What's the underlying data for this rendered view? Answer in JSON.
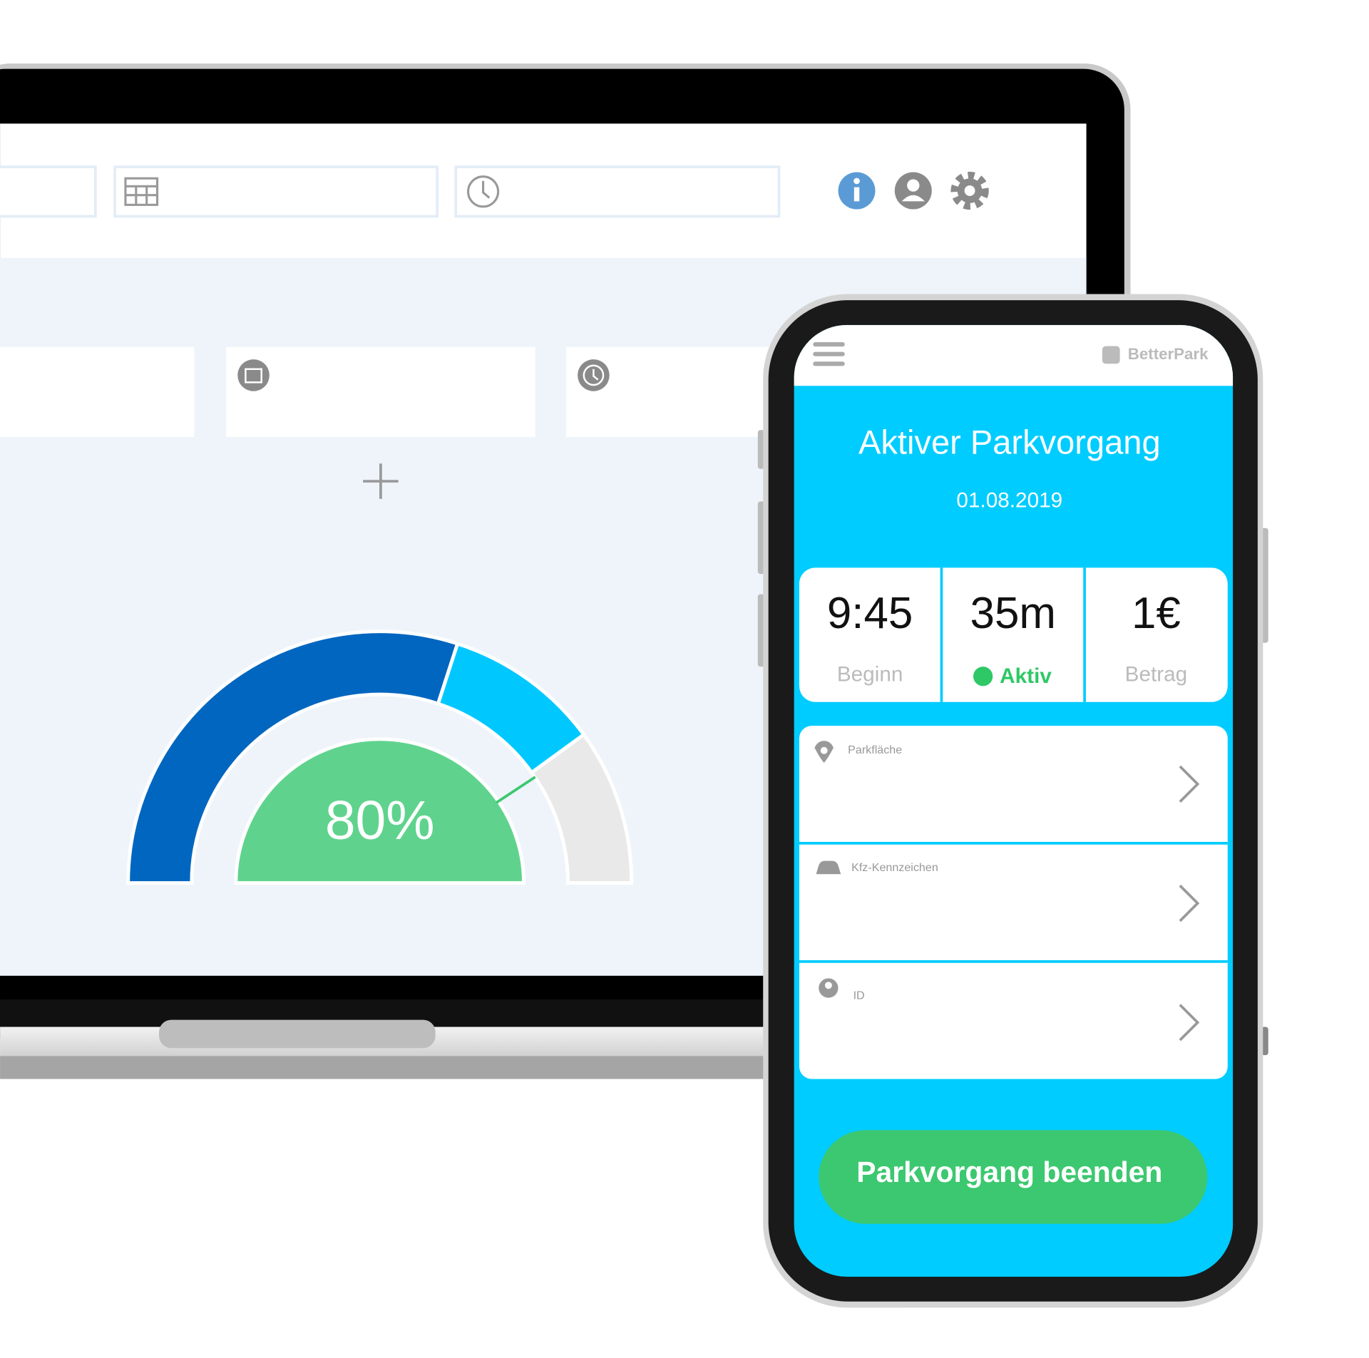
{
  "desktop": {
    "gauge_label": "80%"
  },
  "mobile": {
    "brand": "BetterPark",
    "title": "Aktiver Parkvorgang",
    "date": "01.08.2019",
    "stats": [
      {
        "value": "9:45",
        "label": "Beginn"
      },
      {
        "value": "35m",
        "label": "Aktiv"
      },
      {
        "value": "1€",
        "label": "Betrag"
      }
    ],
    "fields": [
      {
        "label": "Parkfläche"
      },
      {
        "label": "Kfz-Kennzeichen"
      },
      {
        "label": "ID"
      }
    ],
    "button": "Parkvorgang beenden"
  }
}
